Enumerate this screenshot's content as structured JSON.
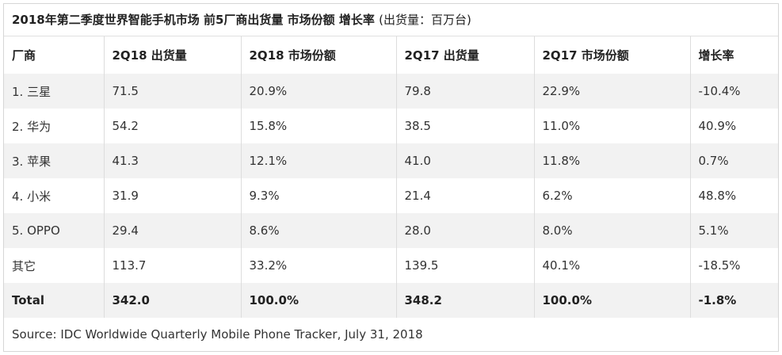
{
  "title": "2018年第二季度世界智能手机市场 前5厂商出货量 市场份额 增长率",
  "unit": "(出货量：百万台)",
  "headers": [
    "厂商",
    "2Q18 出货量",
    "2Q18 市场份额",
    "2Q17 出货量",
    "2Q17 市场份额",
    "增长率"
  ],
  "rows": [
    [
      "1. 三星",
      "71.5",
      "20.9%",
      "79.8",
      "22.9%",
      "-10.4%"
    ],
    [
      "2. 华为",
      "54.2",
      "15.8%",
      "38.5",
      "11.0%",
      "40.9%"
    ],
    [
      "3. 苹果",
      "41.3",
      "12.1%",
      "41.0",
      "11.8%",
      "0.7%"
    ],
    [
      "4. 小米",
      "31.9",
      "9.3%",
      "21.4",
      "6.2%",
      "48.8%"
    ],
    [
      "5. OPPO",
      "29.4",
      "8.6%",
      "28.0",
      "8.0%",
      "5.1%"
    ],
    [
      "其它",
      "113.7",
      "33.2%",
      "139.5",
      "40.1%",
      "-18.5%"
    ]
  ],
  "total": [
    "Total",
    "342.0",
    "100.0%",
    "348.2",
    "100.0%",
    "-1.8%"
  ],
  "source": "Source: IDC Worldwide Quarterly Mobile Phone Tracker, July 31, 2018",
  "colors": {
    "shade": "#f2f2f2",
    "border": "#dddddd",
    "text": "#333333"
  }
}
